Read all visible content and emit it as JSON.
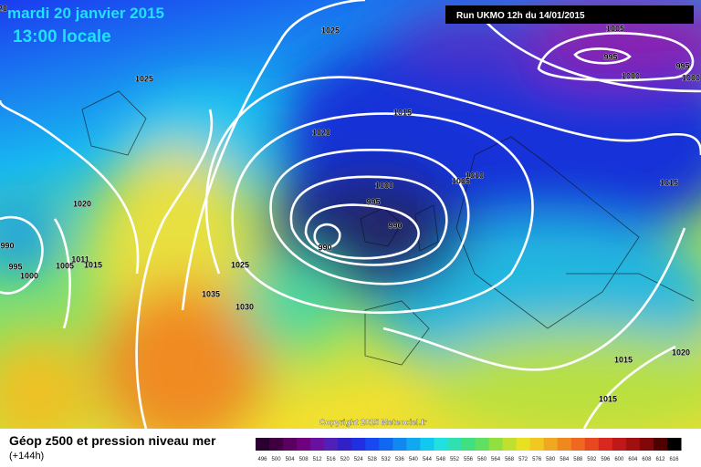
{
  "header": {
    "date": "mardi 20 janvier 2015",
    "time": "13:00 locale",
    "run": "Run UKMO 12h du 14/01/2015"
  },
  "isobar_labels": [
    "1020",
    "1025",
    "1025",
    "1015",
    "1020",
    "1005",
    "995",
    "995",
    "1000",
    "1000",
    "1010",
    "1005",
    "1015",
    "1000",
    "995",
    "990",
    "990",
    "1020",
    "990",
    "995",
    "1000",
    "1011",
    "1005",
    "1015",
    "1025",
    "1035",
    "1030",
    "1020",
    "1015",
    "1015"
  ],
  "copyright": "Copyright 2015 Meteociel.fr",
  "legend": {
    "title": "Géop z500 et pression niveau mer",
    "lead": "(+144h)",
    "ticks": [
      496,
      500,
      504,
      508,
      512,
      516,
      520,
      524,
      528,
      532,
      536,
      540,
      544,
      548,
      552,
      556,
      560,
      564,
      568,
      572,
      576,
      580,
      584,
      588,
      592,
      596,
      600,
      604,
      608,
      612,
      616
    ]
  }
}
